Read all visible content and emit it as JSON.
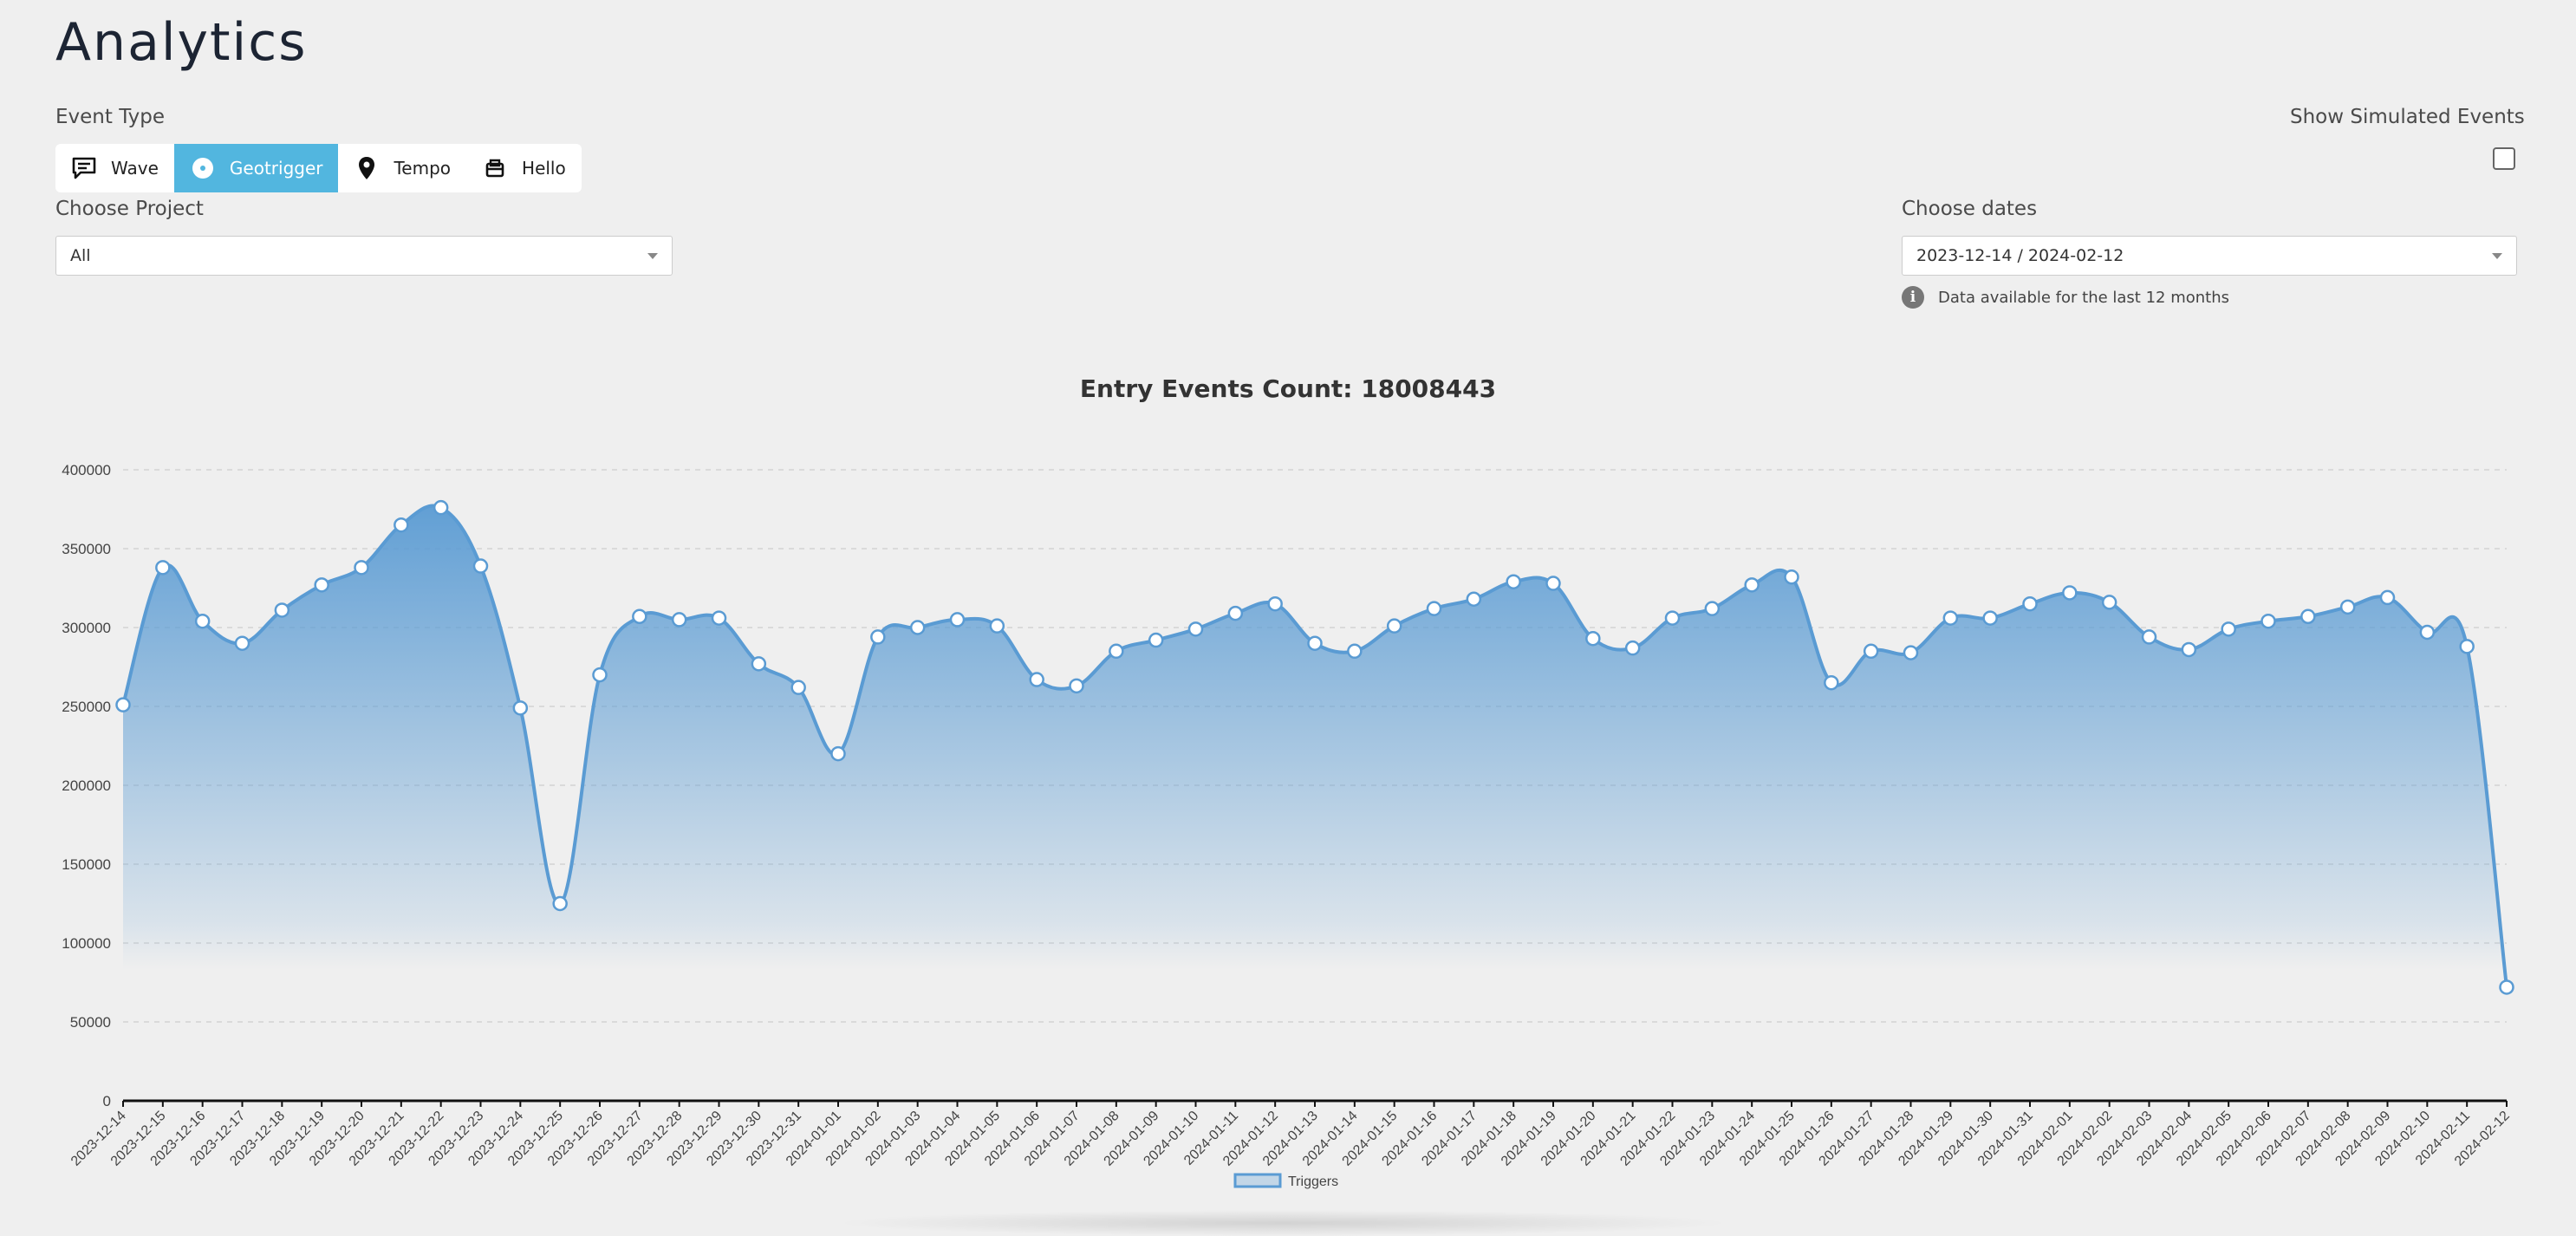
{
  "page": {
    "title": "Analytics"
  },
  "event_type": {
    "label": "Event Type",
    "options": [
      {
        "label": "Wave",
        "icon": "chat-bubble-icon",
        "active": false
      },
      {
        "label": "Geotrigger",
        "icon": "target-icon",
        "active": true
      },
      {
        "label": "Tempo",
        "icon": "map-pin-icon",
        "active": false
      },
      {
        "label": "Hello",
        "icon": "inbox-icon",
        "active": false
      }
    ]
  },
  "simulated": {
    "label": "Show Simulated Events",
    "checked": false
  },
  "project": {
    "label": "Choose Project",
    "value": "All"
  },
  "dates": {
    "label": "Choose dates",
    "value": "2023-12-14 / 2024-02-12",
    "info": "Data available for the last 12 months"
  },
  "colors": {
    "accent": "#52b6df",
    "series": "#5a9bd3"
  },
  "chart_data": {
    "type": "area",
    "title": "Entry Events Count: 18008443",
    "ylim": [
      0,
      400000
    ],
    "yticks": [
      0,
      50000,
      100000,
      150000,
      200000,
      250000,
      300000,
      350000,
      400000
    ],
    "grid": true,
    "legend": "bottom",
    "x": [
      "2023-12-14",
      "2023-12-15",
      "2023-12-16",
      "2023-12-17",
      "2023-12-18",
      "2023-12-19",
      "2023-12-20",
      "2023-12-21",
      "2023-12-22",
      "2023-12-23",
      "2023-12-24",
      "2023-12-25",
      "2023-12-26",
      "2023-12-27",
      "2023-12-28",
      "2023-12-29",
      "2023-12-30",
      "2023-12-31",
      "2024-01-01",
      "2024-01-02",
      "2024-01-03",
      "2024-01-04",
      "2024-01-05",
      "2024-01-06",
      "2024-01-07",
      "2024-01-08",
      "2024-01-09",
      "2024-01-10",
      "2024-01-11",
      "2024-01-12",
      "2024-01-13",
      "2024-01-14",
      "2024-01-15",
      "2024-01-16",
      "2024-01-17",
      "2024-01-18",
      "2024-01-19",
      "2024-01-20",
      "2024-01-21",
      "2024-01-22",
      "2024-01-23",
      "2024-01-24",
      "2024-01-25",
      "2024-01-26",
      "2024-01-27",
      "2024-01-28",
      "2024-01-29",
      "2024-01-30",
      "2024-01-31",
      "2024-02-01",
      "2024-02-02",
      "2024-02-03",
      "2024-02-04",
      "2024-02-05",
      "2024-02-06",
      "2024-02-07",
      "2024-02-08",
      "2024-02-09",
      "2024-02-10",
      "2024-02-11",
      "2024-02-12"
    ],
    "series": [
      {
        "name": "Triggers",
        "values": [
          251000,
          338000,
          304000,
          290000,
          311000,
          327000,
          338000,
          365000,
          376000,
          339000,
          249000,
          125000,
          270000,
          307000,
          305000,
          306000,
          277000,
          262000,
          220000,
          294000,
          300000,
          305000,
          301000,
          267000,
          263000,
          285000,
          292000,
          299000,
          309000,
          315000,
          290000,
          285000,
          301000,
          312000,
          318000,
          329000,
          328000,
          293000,
          287000,
          306000,
          312000,
          327000,
          332000,
          265000,
          285000,
          284000,
          306000,
          306000,
          315000,
          322000,
          316000,
          294000,
          286000,
          299000,
          304000,
          307000,
          313000,
          319000,
          297000,
          288000,
          72000
        ]
      }
    ]
  }
}
